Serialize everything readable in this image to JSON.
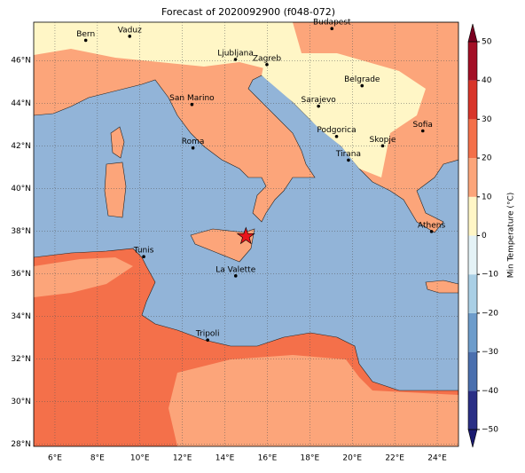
{
  "title": "Forecast of 2020092900 (f048-072)",
  "map": {
    "xlim": [
      5,
      25
    ],
    "ylim": [
      27.9,
      47.8
    ],
    "xticks": [
      {
        "value": 6,
        "label": "6°E"
      },
      {
        "value": 8,
        "label": "8°E"
      },
      {
        "value": 10,
        "label": "10°E"
      },
      {
        "value": 12,
        "label": "12°E"
      },
      {
        "value": 14,
        "label": "14°E"
      },
      {
        "value": 16,
        "label": "16°E"
      },
      {
        "value": 18,
        "label": "18°E"
      },
      {
        "value": 20,
        "label": "20°E"
      },
      {
        "value": 22,
        "label": "22°E"
      },
      {
        "value": 24,
        "label": "24°E"
      }
    ],
    "yticks": [
      {
        "value": 28,
        "label": "28°N"
      },
      {
        "value": 30,
        "label": "30°N"
      },
      {
        "value": 32,
        "label": "32°N"
      },
      {
        "value": 34,
        "label": "34°N"
      },
      {
        "value": 36,
        "label": "36°N"
      },
      {
        "value": 38,
        "label": "38°N"
      },
      {
        "value": 40,
        "label": "40°N"
      },
      {
        "value": 42,
        "label": "42°N"
      },
      {
        "value": 44,
        "label": "44°N"
      },
      {
        "value": 46,
        "label": "46°N"
      }
    ],
    "grid": true,
    "cities": [
      {
        "name": "Bern",
        "lon": 7.45,
        "lat": 46.95
      },
      {
        "name": "Vaduz",
        "lon": 9.52,
        "lat": 47.14
      },
      {
        "name": "Budapest",
        "lon": 19.04,
        "lat": 47.5
      },
      {
        "name": "Ljubljana",
        "lon": 14.5,
        "lat": 46.05
      },
      {
        "name": "Zagreb",
        "lon": 15.98,
        "lat": 45.81
      },
      {
        "name": "Belgrade",
        "lon": 20.46,
        "lat": 44.82
      },
      {
        "name": "Sarajevo",
        "lon": 18.41,
        "lat": 43.86
      },
      {
        "name": "San Marino",
        "lon": 12.45,
        "lat": 43.94
      },
      {
        "name": "Sofia",
        "lon": 23.32,
        "lat": 42.7
      },
      {
        "name": "Podgorica",
        "lon": 19.26,
        "lat": 42.44
      },
      {
        "name": "Skopje",
        "lon": 21.43,
        "lat": 42.0
      },
      {
        "name": "Roma",
        "lon": 12.5,
        "lat": 41.9
      },
      {
        "name": "Tirana",
        "lon": 19.82,
        "lat": 41.33
      },
      {
        "name": "Athens",
        "lon": 23.73,
        "lat": 37.98
      },
      {
        "name": "Tunis",
        "lon": 10.18,
        "lat": 36.8
      },
      {
        "name": "La Valette",
        "lon": 14.51,
        "lat": 35.9
      },
      {
        "name": "Tripoli",
        "lon": 13.19,
        "lat": 32.89
      }
    ],
    "marker": {
      "lon": 14.99,
      "lat": 37.75,
      "color": "#e8141c"
    }
  },
  "colorbar": {
    "label": "Min Temperature (°C)",
    "lim": [
      -50,
      50
    ],
    "ticks": [
      {
        "value": -50,
        "label": "−50"
      },
      {
        "value": -40,
        "label": "−40"
      },
      {
        "value": -30,
        "label": "−30"
      },
      {
        "value": -20,
        "label": "−20"
      },
      {
        "value": -10,
        "label": "−10"
      },
      0,
      10,
      20,
      30,
      40,
      50
    ],
    "levels": [
      -50,
      -40,
      -30,
      -20,
      -10,
      0,
      10,
      20,
      30,
      40,
      50
    ],
    "colors": [
      "#2a2f85",
      "#4a6fae",
      "#6d9ccb",
      "#a9cfe5",
      "#e4f2f6",
      "#fff6c6",
      "#fca57a",
      "#f4704a",
      "#d8352a",
      "#a30f26"
    ],
    "under": "#1a1a70",
    "over": "#7a0020"
  }
}
